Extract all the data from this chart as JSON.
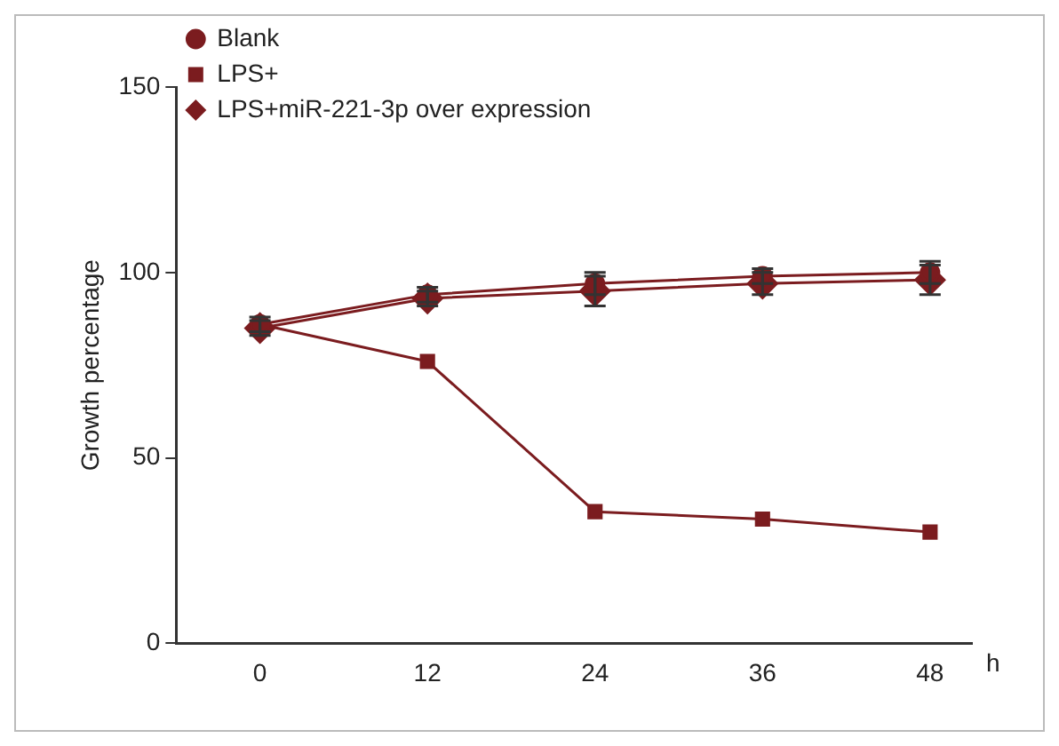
{
  "chart_data": {
    "type": "line",
    "xlabel": "h",
    "ylabel": "Growth percentage",
    "x": [
      0,
      12,
      24,
      36,
      48
    ],
    "xlim": [
      -6,
      51
    ],
    "xticks": [
      0,
      12,
      24,
      36,
      48
    ],
    "ylim": [
      0,
      150
    ],
    "yticks": [
      0,
      50,
      100,
      150
    ],
    "grid": false,
    "legend": "top left",
    "series": [
      {
        "name": "Blank",
        "color": "#7b1c1f",
        "marker": "circle",
        "values": [
          86,
          94,
          97,
          99,
          100
        ],
        "errors": [
          2,
          2,
          3,
          2,
          3
        ]
      },
      {
        "name": "LPS+",
        "color": "#7b1c1f",
        "marker": "square",
        "values": [
          86,
          76,
          35.5,
          33.5,
          30
        ],
        "errors": [
          null,
          null,
          null,
          null,
          null
        ]
      },
      {
        "name": "LPS+miR-221-3p over expression",
        "color": "#7b1c1f",
        "marker": "diamond",
        "values": [
          85,
          93,
          95,
          97,
          98
        ],
        "errors": [
          2,
          2,
          4,
          3,
          4
        ]
      }
    ]
  }
}
